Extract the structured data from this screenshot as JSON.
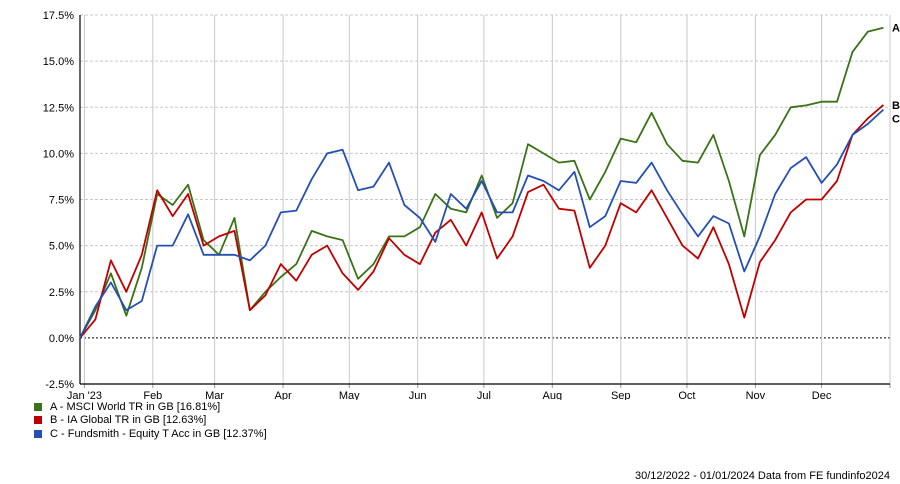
{
  "chart_data": {
    "type": "line",
    "title": "",
    "xlabel": "",
    "ylabel": "",
    "xlim": [
      "2022-12-30",
      "2024-01-01"
    ],
    "ylim": [
      -2.5,
      17.5
    ],
    "y_ticks": [
      -2.5,
      0,
      2.5,
      5,
      7.5,
      10,
      12.5,
      15,
      17.5
    ],
    "y_tick_labels": [
      "-2.5%",
      "0.0%",
      "2.5%",
      "5.0%",
      "7.5%",
      "10.0%",
      "12.5%",
      "15.0%",
      "17.5%"
    ],
    "x_ticks": [
      "2023-01-01",
      "2023-02-01",
      "2023-03-01",
      "2023-04-01",
      "2023-05-01",
      "2023-06-01",
      "2023-07-01",
      "2023-08-01",
      "2023-09-01",
      "2023-10-01",
      "2023-11-01",
      "2023-12-01",
      "2024-01-01"
    ],
    "x_tick_labels": [
      "Jan '23",
      "Feb",
      "Mar",
      "Apr",
      "May",
      "Jun",
      "Jul",
      "Aug",
      "Sep",
      "Oct",
      "Nov",
      "Dec",
      ""
    ],
    "grid": true,
    "zero_line": "dotted",
    "legend_placement": "bottom-left",
    "x": [
      "2022-12-30",
      "2023-01-06",
      "2023-01-13",
      "2023-01-20",
      "2023-01-27",
      "2023-02-03",
      "2023-02-10",
      "2023-02-17",
      "2023-02-24",
      "2023-03-03",
      "2023-03-10",
      "2023-03-17",
      "2023-03-24",
      "2023-03-31",
      "2023-04-07",
      "2023-04-14",
      "2023-04-21",
      "2023-04-28",
      "2023-05-05",
      "2023-05-12",
      "2023-05-19",
      "2023-05-26",
      "2023-06-02",
      "2023-06-09",
      "2023-06-16",
      "2023-06-23",
      "2023-06-30",
      "2023-07-07",
      "2023-07-14",
      "2023-07-21",
      "2023-07-28",
      "2023-08-04",
      "2023-08-11",
      "2023-08-18",
      "2023-08-25",
      "2023-09-01",
      "2023-09-08",
      "2023-09-15",
      "2023-09-22",
      "2023-09-29",
      "2023-10-06",
      "2023-10-13",
      "2023-10-20",
      "2023-10-27",
      "2023-11-03",
      "2023-11-10",
      "2023-11-17",
      "2023-11-24",
      "2023-12-01",
      "2023-12-08",
      "2023-12-15",
      "2023-12-22",
      "2023-12-29"
    ],
    "series": [
      {
        "name": "A - MSCI World TR in GB [16.81%]",
        "end_label": "A",
        "color": "#3a7317",
        "values": [
          0,
          1.5,
          3.5,
          1.2,
          3.8,
          7.8,
          7.2,
          8.3,
          5.3,
          4.5,
          6.5,
          1.5,
          2.5,
          3.3,
          4.0,
          5.8,
          5.5,
          5.3,
          3.2,
          4.0,
          5.5,
          5.5,
          6.0,
          7.8,
          7.0,
          6.8,
          8.8,
          6.5,
          7.3,
          10.5,
          10.0,
          9.5,
          9.6,
          7.5,
          9.0,
          10.8,
          10.6,
          12.2,
          10.5,
          9.6,
          9.5,
          11.0,
          8.5,
          5.5,
          9.9,
          11.0,
          12.5,
          12.6,
          12.8,
          12.8,
          15.5,
          16.6,
          16.81
        ]
      },
      {
        "name": "B - IA Global TR in GB [12.63%]",
        "end_label": "B",
        "color": "#c00000",
        "values": [
          0,
          1.0,
          4.2,
          2.5,
          4.5,
          8.0,
          6.6,
          7.8,
          5.0,
          5.5,
          5.8,
          1.5,
          2.3,
          4.0,
          3.1,
          4.5,
          5.0,
          3.5,
          2.6,
          3.6,
          5.4,
          4.5,
          4.0,
          5.7,
          6.4,
          5.0,
          6.8,
          4.3,
          5.5,
          7.9,
          8.3,
          7.0,
          6.9,
          3.8,
          5.0,
          7.3,
          6.8,
          8.0,
          6.5,
          5.0,
          4.3,
          6.0,
          4.0,
          1.1,
          4.1,
          5.3,
          6.8,
          7.5,
          7.5,
          8.5,
          11.0,
          11.9,
          12.63
        ]
      },
      {
        "name": "C - Fundsmith - Equity T Acc in GB [12.37%]",
        "end_label": "C",
        "color": "#2450b4",
        "values": [
          0,
          1.7,
          3.0,
          1.5,
          2.0,
          5.0,
          5.0,
          6.7,
          4.5,
          4.5,
          4.5,
          4.2,
          5.0,
          6.8,
          6.9,
          8.6,
          10.0,
          10.2,
          8.0,
          8.2,
          9.5,
          7.2,
          6.5,
          5.2,
          7.8,
          7.0,
          8.5,
          6.8,
          6.8,
          8.8,
          8.5,
          8.0,
          9.0,
          6.0,
          6.6,
          8.5,
          8.4,
          9.5,
          8.0,
          6.7,
          5.5,
          6.6,
          6.2,
          3.6,
          5.5,
          7.8,
          9.2,
          9.8,
          8.4,
          9.4,
          11.0,
          11.6,
          12.37
        ]
      }
    ]
  },
  "footer": "30/12/2022 - 01/01/2024 Data from FE fundinfo2024"
}
